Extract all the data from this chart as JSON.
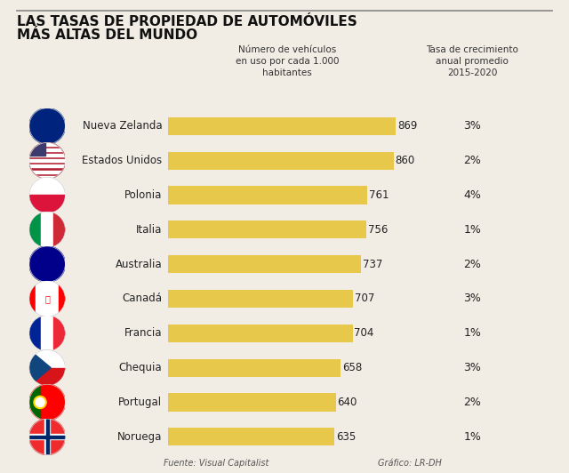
{
  "title_line1": "LAS TASAS DE PROPIEDAD DE AUTOMÓVILES",
  "title_line2": "MÁS ALTAS DEL MUNDO",
  "col1_header": "Número de vehículos\nen uso por cada 1.000\nhabitantes",
  "col2_header": "Tasa de crecimiento\nanual promedio\n2015-2020",
  "countries": [
    "Nueva Zelanda",
    "Estados Unidos",
    "Polonia",
    "Italia",
    "Australia",
    "Canadá",
    "Francia",
    "Chequia",
    "Portugal",
    "Noruega"
  ],
  "values": [
    869,
    860,
    761,
    756,
    737,
    707,
    704,
    658,
    640,
    635
  ],
  "growth": [
    "3%",
    "2%",
    "4%",
    "1%",
    "2%",
    "3%",
    "1%",
    "3%",
    "2%",
    "1%"
  ],
  "bar_color": "#E8C84A",
  "bg_color": "#F2EDE4",
  "text_color": "#222222",
  "title_color": "#111111",
  "footer_left": "Fuente: Visual Capitalist",
  "footer_right": "Gráfico: LR-DH",
  "max_value": 900,
  "flag_colors": {
    "Nueva Zelanda": [
      "#00247D",
      "#CC0001",
      "#FFFFFF"
    ],
    "Estados Unidos": [
      "#B22234",
      "#FFFFFF",
      "#3C3B6E"
    ],
    "Polonia": [
      "#FFFFFF",
      "#DC143C"
    ],
    "Italia": [
      "#009246",
      "#FFFFFF",
      "#CE2B37"
    ],
    "Australia": [
      "#00008B",
      "#CC0001",
      "#FFFFFF"
    ],
    "Canadá": [
      "#FF0000",
      "#FFFFFF"
    ],
    "Francia": [
      "#002395",
      "#FFFFFF",
      "#ED2939"
    ],
    "Chequia": [
      "#D7141A",
      "#FFFFFF",
      "#11457E"
    ],
    "Portugal": [
      "#006600",
      "#FF0000",
      "#FFD700"
    ],
    "Noruega": [
      "#EF2B2D",
      "#FFFFFF",
      "#002868"
    ]
  }
}
